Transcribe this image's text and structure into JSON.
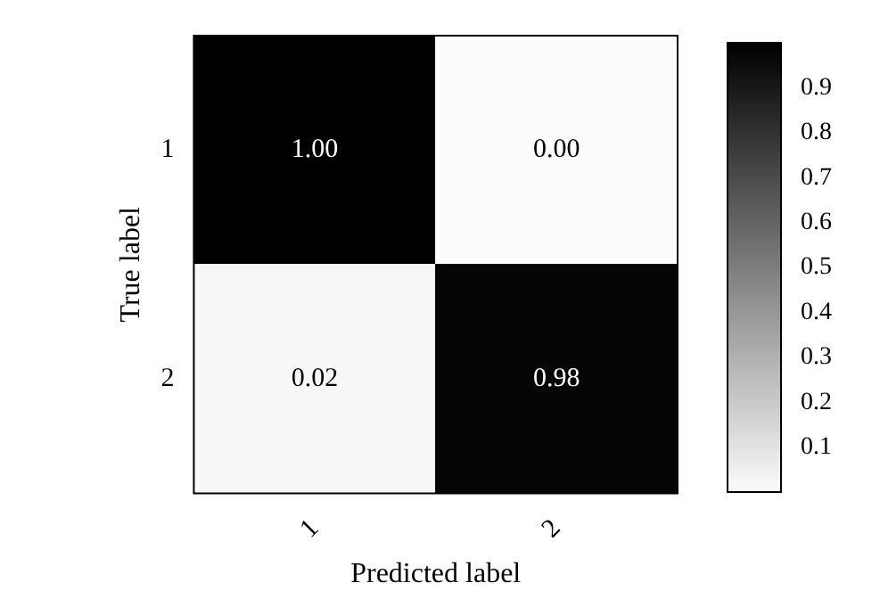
{
  "chart_data": {
    "type": "heatmap",
    "xlabel": "Predicted label",
    "ylabel": "True label",
    "categories": [
      "1",
      "2"
    ],
    "y_categories": [
      "1",
      "2"
    ],
    "cells": [
      [
        1.0,
        0.0
      ],
      [
        0.02,
        0.98
      ]
    ],
    "cell_labels": [
      [
        "1.00",
        "0.00"
      ],
      [
        "0.02",
        "0.98"
      ]
    ],
    "clim": [
      0,
      1
    ],
    "cticks": [
      0.1,
      0.2,
      0.3,
      0.4,
      0.5,
      0.6,
      0.7,
      0.8,
      0.9
    ]
  }
}
